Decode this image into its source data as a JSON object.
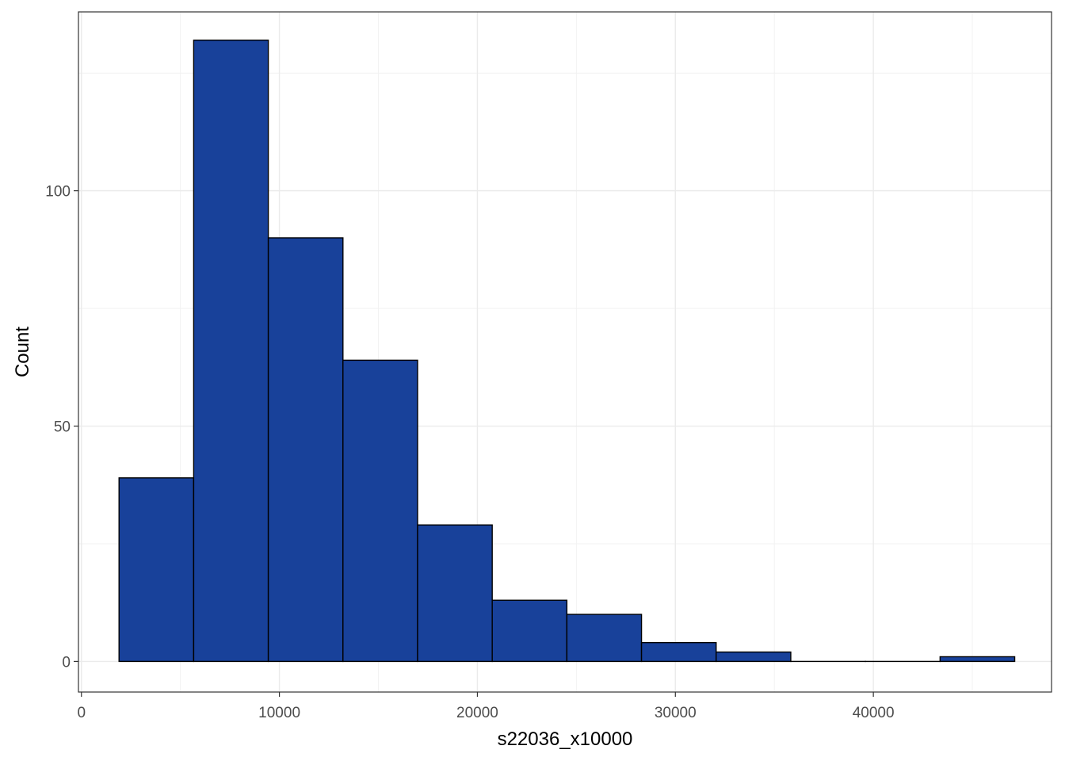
{
  "chart_data": {
    "type": "bar",
    "title": "",
    "xlabel": "s22036_x10000",
    "ylabel": "Count",
    "xlim": [
      -150,
      49000
    ],
    "ylim": [
      -6.5,
      138
    ],
    "grid": true,
    "bar_color": "#18419A",
    "bar_edge_color": "#000000",
    "x_ticks": [
      0,
      10000,
      20000,
      30000,
      40000
    ],
    "x_tick_labels": [
      "0",
      "10000",
      "20000",
      "30000",
      "40000"
    ],
    "y_ticks": [
      0,
      50,
      100
    ],
    "y_tick_labels": [
      "0",
      "50",
      "100"
    ],
    "bins": [
      {
        "x0": 1900,
        "x1": 5670,
        "count": 39
      },
      {
        "x0": 5670,
        "x1": 9440,
        "count": 132
      },
      {
        "x0": 9440,
        "x1": 13210,
        "count": 90
      },
      {
        "x0": 13210,
        "x1": 16980,
        "count": 64
      },
      {
        "x0": 16980,
        "x1": 20750,
        "count": 29
      },
      {
        "x0": 20750,
        "x1": 24520,
        "count": 13
      },
      {
        "x0": 24520,
        "x1": 28290,
        "count": 10
      },
      {
        "x0": 28290,
        "x1": 32060,
        "count": 4
      },
      {
        "x0": 32060,
        "x1": 35830,
        "count": 2
      },
      {
        "x0": 35830,
        "x1": 39600,
        "count": 0
      },
      {
        "x0": 39600,
        "x1": 43370,
        "count": 0
      },
      {
        "x0": 43370,
        "x1": 47140,
        "count": 1
      }
    ]
  }
}
